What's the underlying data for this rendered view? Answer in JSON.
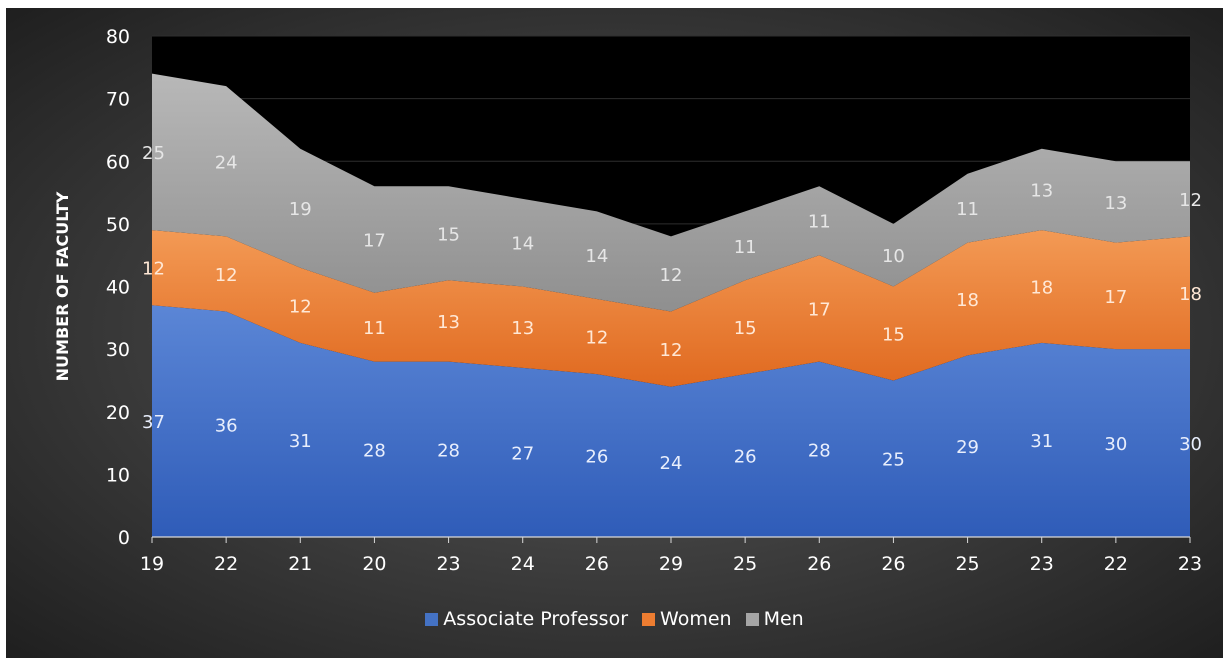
{
  "chart_data": {
    "type": "area",
    "title": "",
    "ylabel": "NUMBER OF FACULTY",
    "xlabel": "",
    "ylim": [
      0,
      80
    ],
    "yticks": [
      0,
      10,
      20,
      30,
      40,
      50,
      60,
      70,
      80
    ],
    "categories": [
      "19",
      "22",
      "21",
      "20",
      "23",
      "24",
      "26",
      "29",
      "25",
      "26",
      "26",
      "25",
      "23",
      "22",
      "23"
    ],
    "stacked": true,
    "grid": true,
    "legend_position": "bottom",
    "series": [
      {
        "name": "Associate Professor",
        "color": "#4472c4",
        "values": [
          37,
          36,
          31,
          28,
          28,
          27,
          26,
          24,
          26,
          28,
          25,
          29,
          31,
          30,
          30
        ]
      },
      {
        "name": "Women",
        "color": "#ed7d31",
        "values": [
          12,
          12,
          12,
          11,
          13,
          13,
          12,
          12,
          15,
          17,
          15,
          18,
          18,
          17,
          18
        ]
      },
      {
        "name": "Men",
        "color": "#a5a5a5",
        "values": [
          25,
          24,
          19,
          17,
          15,
          14,
          14,
          12,
          11,
          11,
          10,
          11,
          13,
          13,
          12
        ]
      }
    ]
  }
}
